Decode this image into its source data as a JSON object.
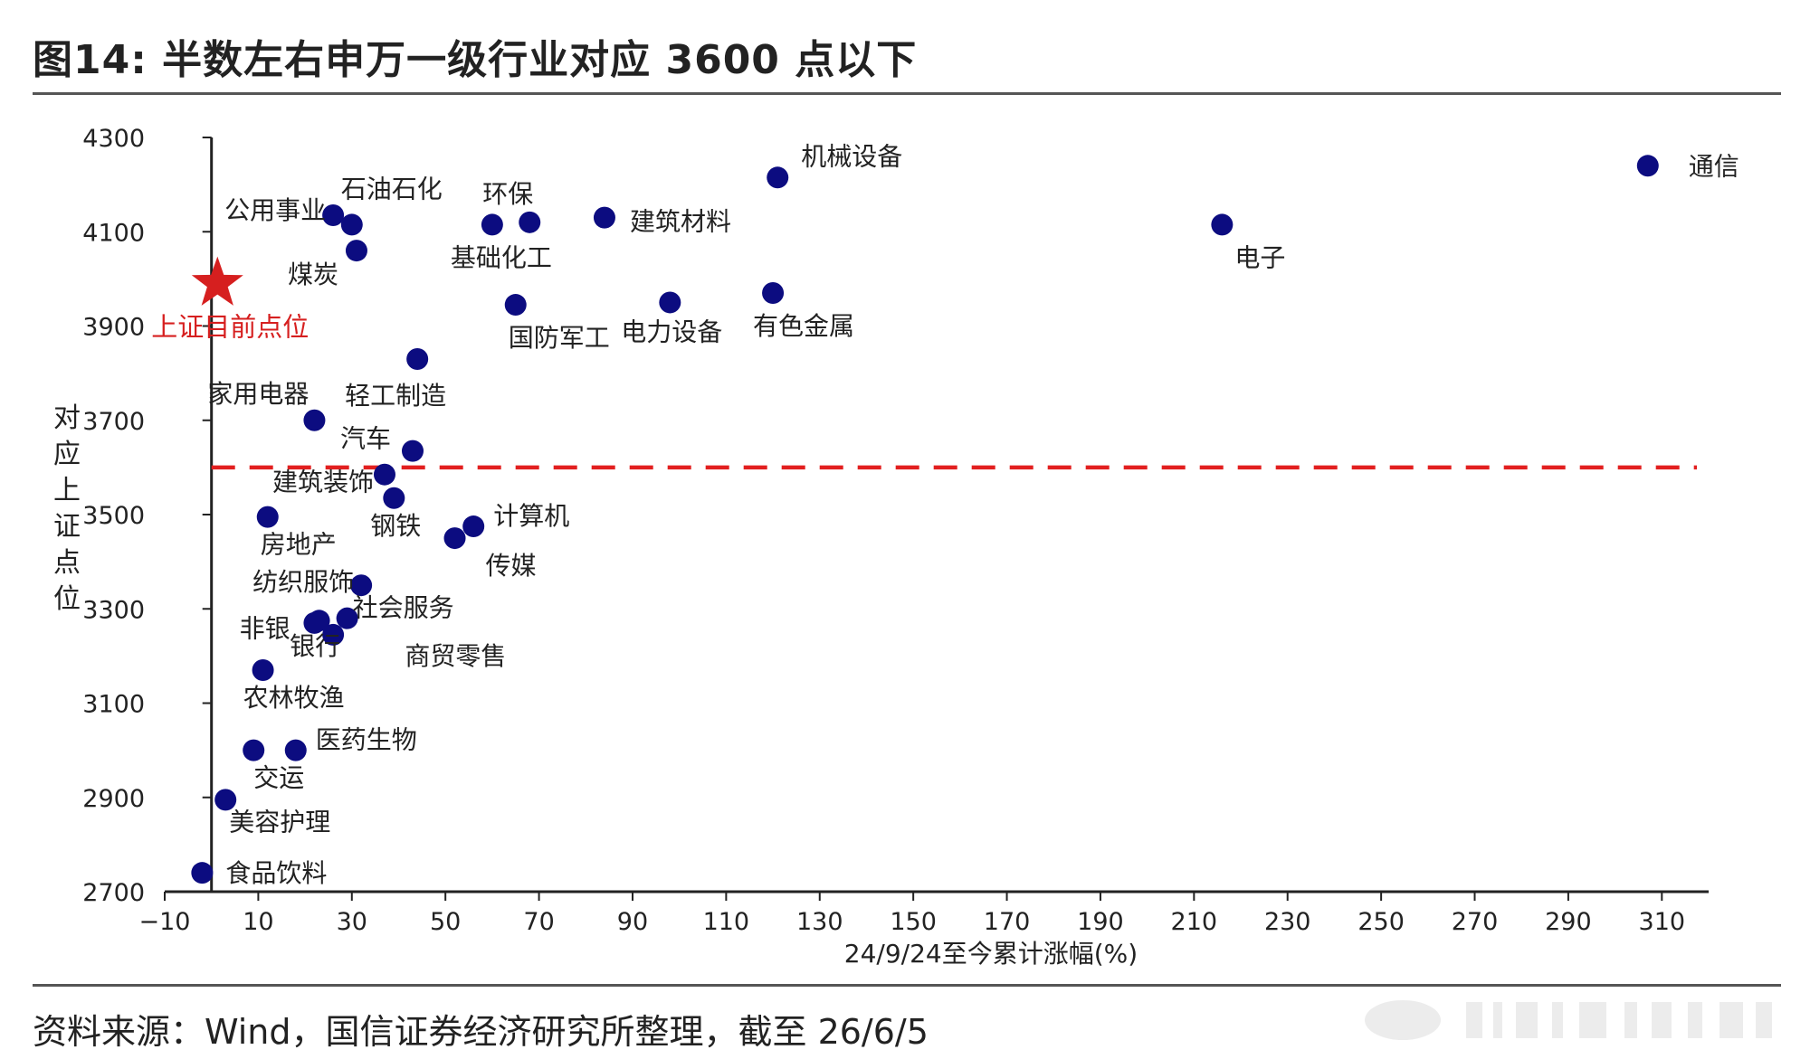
{
  "header": {
    "title": "图14: 半数左右申万一级行业对应 3600 点以下"
  },
  "footer": {
    "source": "资料来源：Wind，国信证券经济研究所整理，截至 26/6/5"
  },
  "chart_data": {
    "type": "scatter",
    "title": "",
    "xlabel": "24/9/24至今累计涨幅(%)",
    "ylabel": "对应上证点位",
    "xlim": [
      -10,
      320
    ],
    "ylim": [
      2700,
      4300
    ],
    "xticks": [
      -10,
      10,
      30,
      50,
      70,
      90,
      110,
      130,
      150,
      170,
      190,
      210,
      230,
      250,
      270,
      290,
      310
    ],
    "yticks": [
      2700,
      2900,
      3100,
      3300,
      3500,
      3700,
      3900,
      4100,
      4300
    ],
    "grid": false,
    "point_color": "#0c0c80",
    "reference_line": {
      "y": 3600,
      "style": "dashed",
      "color": "#e21f1f"
    },
    "current_marker": {
      "x": 0.5,
      "y": 3990,
      "label": "上证目前点位",
      "color": "#d61f1f",
      "shape": "star"
    },
    "points": [
      {
        "label": "通信",
        "x": 307,
        "y": 4240
      },
      {
        "label": "机械设备",
        "x": 121,
        "y": 4215
      },
      {
        "label": "电子",
        "x": 216,
        "y": 4115
      },
      {
        "label": "建筑材料",
        "x": 84,
        "y": 4130
      },
      {
        "label": "环保",
        "x": 68,
        "y": 4120
      },
      {
        "label": "基础化工",
        "x": 60,
        "y": 4115
      },
      {
        "label": "石油石化",
        "x": 30,
        "y": 4115
      },
      {
        "label": "公用事业",
        "x": 26,
        "y": 4135
      },
      {
        "label": "煤炭",
        "x": 31,
        "y": 4060
      },
      {
        "label": "有色金属",
        "x": 120,
        "y": 3970
      },
      {
        "label": "电力设备",
        "x": 98,
        "y": 3950
      },
      {
        "label": "国防军工",
        "x": 65,
        "y": 3945
      },
      {
        "label": "轻工制造",
        "x": 44,
        "y": 3830
      },
      {
        "label": "家用电器",
        "x": 22,
        "y": 3700
      },
      {
        "label": "汽车",
        "x": 43,
        "y": 3635
      },
      {
        "label": "建筑装饰",
        "x": 37,
        "y": 3585
      },
      {
        "label": "钢铁",
        "x": 39,
        "y": 3535
      },
      {
        "label": "房地产",
        "x": 12,
        "y": 3495
      },
      {
        "label": "计算机",
        "x": 56,
        "y": 3475
      },
      {
        "label": "传媒",
        "x": 52,
        "y": 3450
      },
      {
        "label": "纺织服饰",
        "x": 32,
        "y": 3350
      },
      {
        "label": "社会服务",
        "x": 29,
        "y": 3280
      },
      {
        "label": "非银",
        "x": 23,
        "y": 3275
      },
      {
        "label": "银行",
        "x": 26,
        "y": 3245
      },
      {
        "label": "商贸零售",
        "x": 22,
        "y": 3270
      },
      {
        "label": "农林牧渔",
        "x": 11,
        "y": 3170
      },
      {
        "label": "医药生物",
        "x": 18,
        "y": 3000
      },
      {
        "label": "交运",
        "x": 9,
        "y": 3000
      },
      {
        "label": "美容护理",
        "x": 3,
        "y": 2895
      },
      {
        "label": "食品饮料",
        "x": -2,
        "y": 2740
      }
    ]
  }
}
